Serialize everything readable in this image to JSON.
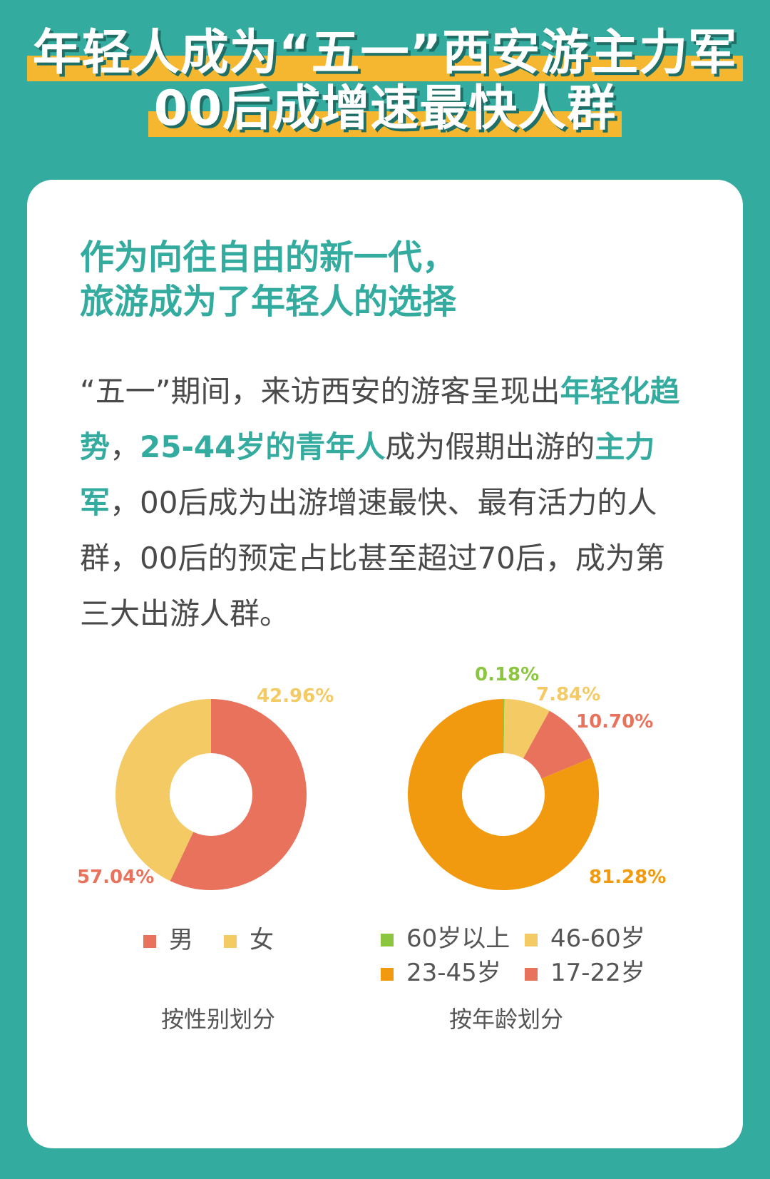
{
  "title": {
    "line1": "年轻人成为“五一”西安游主力军",
    "line2": "00后成增速最快人群"
  },
  "subhead": {
    "line1": "作为向往自由的新一代，",
    "line2": "旅游成为了年轻人的选择"
  },
  "paragraph": {
    "p1": "“五一”期间，来访西安的游客呈现出",
    "e1": "年轻化趋势",
    "p2": "，",
    "e2": "25-44岁的青年人",
    "p3": "成为假期出游的",
    "e3": "主力军",
    "p4": "，00后成为出游增速最快、最有活力的人群，00后的预定占比甚至超过70后，成为第三大出游人群。"
  },
  "colors": {
    "teal": "#33ab9f",
    "yellow_highlight": "#f5b72f"
  },
  "chart_data": [
    {
      "type": "pie",
      "subtype": "donut",
      "caption": "按性别划分",
      "series": [
        {
          "name": "男",
          "value": 57.04,
          "label": "57.04%",
          "color": "#e8725b"
        },
        {
          "name": "女",
          "value": 42.96,
          "label": "42.96%",
          "color": "#f3ca63"
        }
      ],
      "legend": "bottom"
    },
    {
      "type": "pie",
      "subtype": "donut",
      "caption": "按年龄划分",
      "series": [
        {
          "name": "60岁以上",
          "value": 0.18,
          "label": "0.18%",
          "color": "#8cc63e"
        },
        {
          "name": "46-60岁",
          "value": 7.84,
          "label": "7.84%",
          "color": "#f3ca63"
        },
        {
          "name": "17-22岁",
          "value": 10.7,
          "label": "10.70%",
          "color": "#e8725b"
        },
        {
          "name": "23-45岁",
          "value": 81.28,
          "label": "81.28%",
          "color": "#f19a0f"
        }
      ],
      "legend": "bottom"
    }
  ]
}
